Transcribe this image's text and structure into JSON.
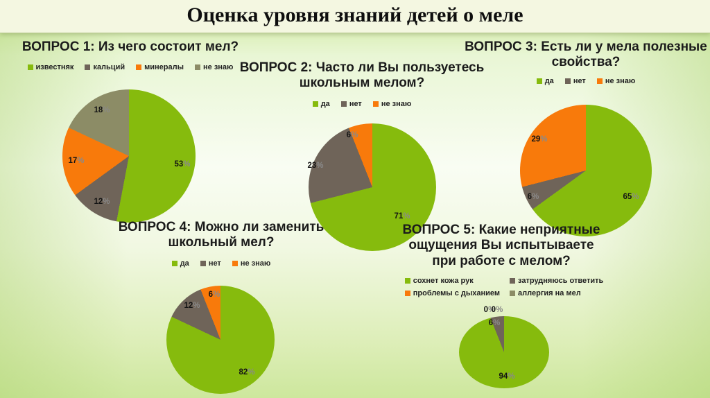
{
  "slide_title": "Оценка уровня знаний детей о меле",
  "colors": {
    "green": "#86BB0D",
    "gray": "#6F6459",
    "orange": "#F87A0B",
    "olive": "#8C8C66"
  },
  "chart_data": [
    {
      "type": "pie",
      "title": "ВОПРОС 1: Из чего состоит мел?",
      "title_lines": [
        "ВОПРОС 1: Из чего состоит мел?"
      ],
      "labels": [
        "известняк",
        "кальций",
        "минералы",
        "не знаю"
      ],
      "values": [
        53,
        12,
        17,
        18
      ],
      "colors": [
        "green",
        "gray",
        "orange",
        "olive"
      ],
      "value_format": "percent",
      "legend_position": "top"
    },
    {
      "type": "pie",
      "title": "ВОПРОС 2: Часто ли Вы пользуетесь школьным мелом?",
      "title_lines": [
        "ВОПРОС 2: Часто ли Вы пользуетесь",
        "школьным мелом?"
      ],
      "labels": [
        "да",
        "нет",
        "не знаю"
      ],
      "values": [
        71,
        23,
        6
      ],
      "colors": [
        "green",
        "gray",
        "orange"
      ],
      "value_format": "percent",
      "legend_position": "top"
    },
    {
      "type": "pie",
      "title": "ВОПРОС 3: Есть ли у мела полезные свойства?",
      "title_lines": [
        "ВОПРОС 3: Есть ли у мела полезные",
        "свойства?"
      ],
      "labels": [
        "да",
        "нет",
        "не знаю"
      ],
      "values": [
        65,
        6,
        29
      ],
      "colors": [
        "green",
        "gray",
        "orange"
      ],
      "value_format": "percent",
      "legend_position": "top"
    },
    {
      "type": "pie",
      "title": "ВОПРОС 4: Можно ли заменить школьный мел?",
      "title_lines": [
        "ВОПРОС 4: Можно ли заменить",
        "школьный мел?"
      ],
      "labels": [
        "да",
        "нет",
        "не знаю"
      ],
      "values": [
        82,
        12,
        6
      ],
      "colors": [
        "green",
        "gray",
        "orange"
      ],
      "value_format": "percent",
      "legend_position": "top"
    },
    {
      "type": "pie",
      "title": "ВОПРОС 5: Какие неприятные ощущения Вы испытываете при работе с мелом?",
      "title_lines": [
        "ВОПРОС 5: Какие неприятные",
        "ощущения Вы испытываете",
        "при работе с мелом?"
      ],
      "labels": [
        "сохнет кожа рук",
        "затрудняюсь ответить",
        "проблемы с дыханием",
        "аллергия на мел"
      ],
      "values": [
        94,
        6,
        0,
        0
      ],
      "colors": [
        "green",
        "gray",
        "orange",
        "olive"
      ],
      "value_format": "percent",
      "legend_position": "top"
    }
  ]
}
